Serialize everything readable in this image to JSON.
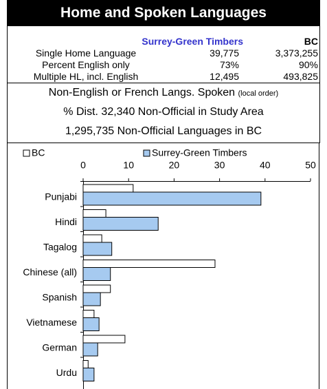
{
  "header": {
    "title": "Home and Spoken Languages"
  },
  "table": {
    "columns": [
      "Surrey-Green Timbers",
      "BC"
    ],
    "rows": [
      [
        "Single Home Language",
        "39,775",
        "3,373,255"
      ],
      [
        "Percent English only",
        "73%",
        "90%"
      ],
      [
        "Multiple HL, incl. English",
        "12,495",
        "493,825"
      ]
    ]
  },
  "notes": {
    "line1": "Non-English or French Langs. Spoken",
    "line1_small": "(local order)",
    "line2": "% Dist. 32,340 Non-Official in Study Area",
    "line3": "1,295,735 Non-Official Languages in BC"
  },
  "chart_data": {
    "type": "hbar",
    "categories": [
      "Punjabi",
      "Hindi",
      "Tagalog",
      "Chinese (all)",
      "Spanish",
      "Vietnamese",
      "German",
      "Urdu"
    ],
    "series": [
      {
        "name": "BC",
        "color": "#ffffff",
        "values": [
          11.0,
          5.0,
          4.1,
          29.0,
          6.0,
          2.4,
          9.2,
          1.1
        ]
      },
      {
        "name": "Surrey-Green Timbers",
        "color": "#a6caf0",
        "values": [
          39.1,
          16.5,
          6.3,
          6.0,
          3.8,
          3.5,
          3.2,
          2.4
        ]
      }
    ],
    "xlim": [
      0,
      50
    ],
    "xticks": [
      0,
      10,
      20,
      30,
      40,
      50
    ]
  }
}
